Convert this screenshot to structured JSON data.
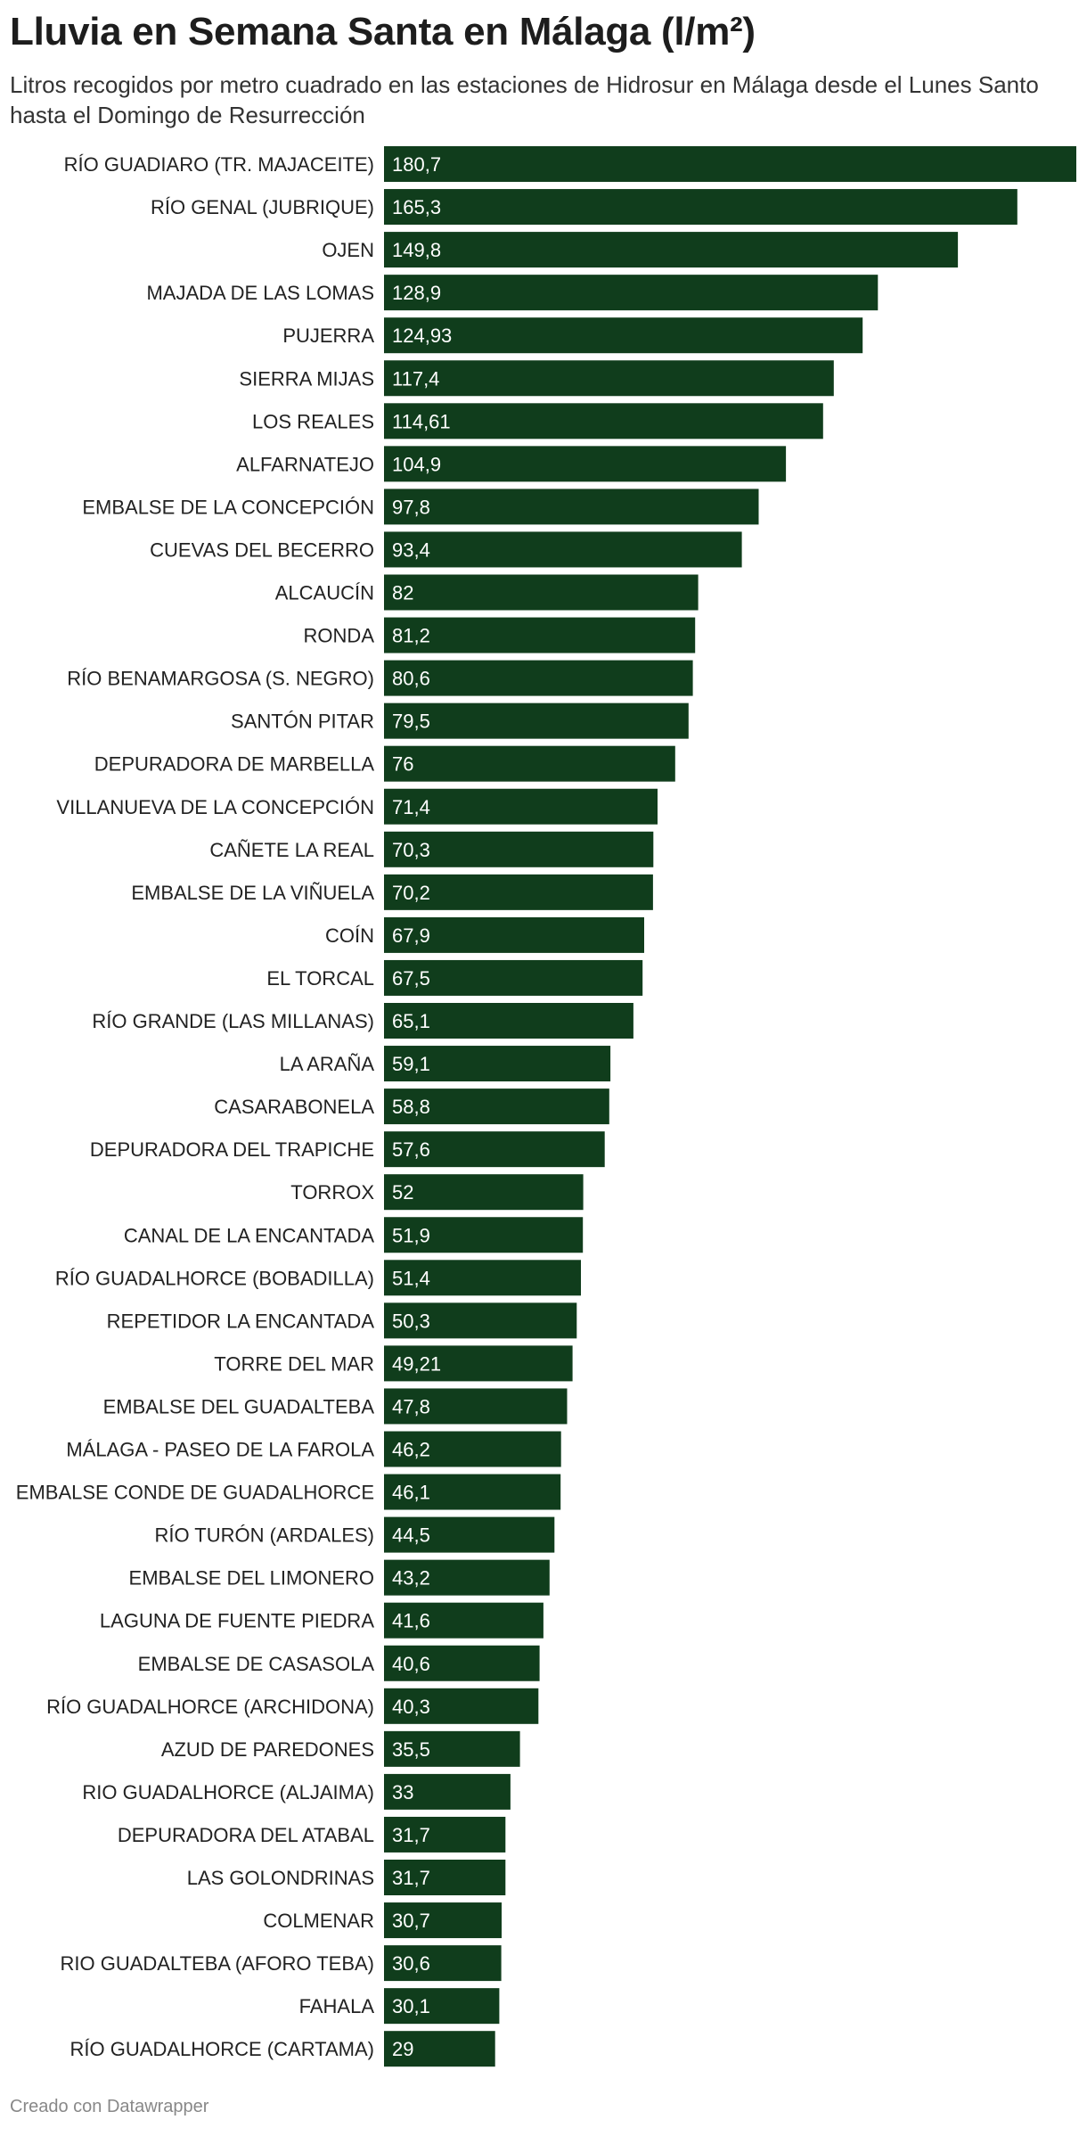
{
  "title": "Lluvia en Semana Santa en Málaga (l/m²)",
  "subtitle": "Litros recogidos por metro cuadrado en las estaciones de Hidrosur en Málaga desde el Lunes Santo hasta el Domingo de Resurrección",
  "footer": "Creado con Datawrapper",
  "colors": {
    "bar": "#103d1c",
    "bar_label": "#ffffff",
    "category_label": "#222222"
  },
  "chart_data": {
    "type": "bar",
    "orientation": "horizontal",
    "xlim": [
      0,
      180.7
    ],
    "categories": [
      "RÍO GUADIARO (TR. MAJACEITE)",
      "RÍO GENAL (JUBRIQUE)",
      "OJEN",
      "MAJADA DE LAS LOMAS",
      "PUJERRA",
      "SIERRA MIJAS",
      "LOS REALES",
      "ALFARNATEJO",
      "EMBALSE DE LA CONCEPCIÓN",
      "CUEVAS DEL BECERRO",
      "ALCAUCÍN",
      "RONDA",
      "RÍO BENAMARGOSA (S. NEGRO)",
      "SANTÓN PITAR",
      "DEPURADORA DE MARBELLA",
      "VILLANUEVA DE LA CONCEPCIÓN",
      "CAÑETE LA REAL",
      "EMBALSE DE LA VIÑUELA",
      "COÍN",
      "EL TORCAL",
      "RÍO GRANDE (LAS MILLANAS)",
      "LA ARAÑA",
      "CASARABONELA",
      "DEPURADORA DEL TRAPICHE",
      "TORROX",
      "CANAL DE LA ENCANTADA",
      "RÍO GUADALHORCE (BOBADILLA)",
      "REPETIDOR LA ENCANTADA",
      "TORRE DEL MAR",
      "EMBALSE DEL GUADALTEBA",
      "MÁLAGA - PASEO DE LA FAROLA",
      "EMBALSE CONDE DE GUADALHORCE",
      "RÍO TURÓN (ARDALES)",
      "EMBALSE DEL LIMONERO",
      "LAGUNA DE FUENTE PIEDRA",
      "EMBALSE DE CASASOLA",
      "RÍO GUADALHORCE (ARCHIDONA)",
      "AZUD DE PAREDONES",
      "RIO GUADALHORCE (ALJAIMA)",
      "DEPURADORA DEL ATABAL",
      "LAS GOLONDRINAS",
      "COLMENAR",
      "RIO GUADALTEBA (AFORO TEBA)",
      "FAHALA",
      "RÍO GUADALHORCE (CARTAMA)"
    ],
    "values": [
      180.7,
      165.3,
      149.8,
      128.9,
      124.93,
      117.4,
      114.61,
      104.9,
      97.8,
      93.4,
      82,
      81.2,
      80.6,
      79.5,
      76,
      71.4,
      70.3,
      70.2,
      67.9,
      67.5,
      65.1,
      59.1,
      58.8,
      57.6,
      52,
      51.9,
      51.4,
      50.3,
      49.21,
      47.8,
      46.2,
      46.1,
      44.5,
      43.2,
      41.6,
      40.6,
      40.3,
      35.5,
      33,
      31.7,
      31.7,
      30.7,
      30.6,
      30.1,
      29
    ],
    "value_labels": [
      "180,7",
      "165,3",
      "149,8",
      "128,9",
      "124,93",
      "117,4",
      "114,61",
      "104,9",
      "97,8",
      "93,4",
      "82",
      "81,2",
      "80,6",
      "79,5",
      "76",
      "71,4",
      "70,3",
      "70,2",
      "67,9",
      "67,5",
      "65,1",
      "59,1",
      "58,8",
      "57,6",
      "52",
      "51,9",
      "51,4",
      "50,3",
      "49,21",
      "47,8",
      "46,2",
      "46,1",
      "44,5",
      "43,2",
      "41,6",
      "40,6",
      "40,3",
      "35,5",
      "33",
      "31,7",
      "31,7",
      "30,7",
      "30,6",
      "30,1",
      "29"
    ]
  }
}
